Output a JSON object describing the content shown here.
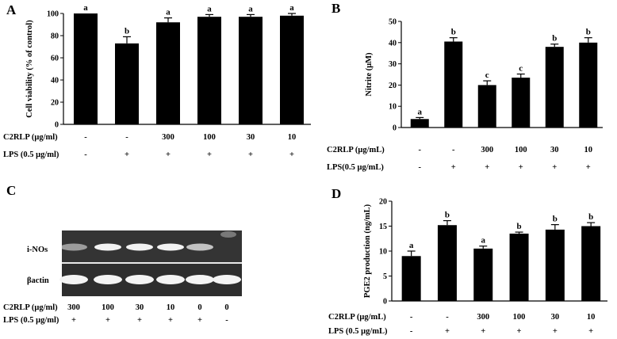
{
  "figure": {
    "panels": [
      {
        "id": "A",
        "label": "A"
      },
      {
        "id": "B",
        "label": "B"
      },
      {
        "id": "C",
        "label": "C"
      },
      {
        "id": "D",
        "label": "D"
      }
    ]
  },
  "chart_data": [
    {
      "panel": "A",
      "type": "bar",
      "ylabel": "Cell viability (% of control)",
      "ylim": [
        0,
        100
      ],
      "yticks": [
        0,
        20,
        40,
        60,
        80,
        100
      ],
      "values": [
        100,
        73,
        92,
        97,
        97,
        98
      ],
      "errors": [
        0,
        6,
        4,
        2,
        2,
        2
      ],
      "significance": [
        "a",
        "b",
        "a",
        "a",
        "a",
        "a"
      ],
      "condition_rows": [
        {
          "label": "C2RLP (μg/ml)",
          "values": [
            "-",
            "-",
            "300",
            "100",
            "30",
            "10"
          ]
        },
        {
          "label": "LPS (0.5 μg/ml)",
          "values": [
            "-",
            "+",
            "+",
            "+",
            "+",
            "+"
          ]
        }
      ]
    },
    {
      "panel": "B",
      "type": "bar",
      "ylabel": "Nitrite (μM)",
      "ylim": [
        0,
        50
      ],
      "yticks": [
        0,
        10,
        20,
        30,
        40,
        50
      ],
      "values": [
        4,
        40.5,
        20,
        23.5,
        38,
        40
      ],
      "errors": [
        0.7,
        1.8,
        2,
        1.7,
        1.3,
        2.3
      ],
      "significance": [
        "a",
        "b",
        "c",
        "c",
        "b",
        "b"
      ],
      "condition_rows": [
        {
          "label": "C2RLP (μg/mL)",
          "values": [
            "-",
            "-",
            "300",
            "100",
            "30",
            "10"
          ]
        },
        {
          "label": "LPS(0.5 μg/mL)",
          "values": [
            "-",
            "+",
            "+",
            "+",
            "+",
            "+"
          ]
        }
      ]
    },
    {
      "panel": "D",
      "type": "bar",
      "ylabel": "PGE2 production (ng/mL)",
      "ylim": [
        0,
        20
      ],
      "yticks": [
        0,
        5,
        10,
        15,
        20
      ],
      "values": [
        9,
        15.2,
        10.5,
        13.5,
        14.3,
        15
      ],
      "errors": [
        1,
        0.9,
        0.5,
        0.3,
        1,
        0.7
      ],
      "significance": [
        "a",
        "b",
        "a",
        "b",
        "b",
        "b"
      ],
      "condition_rows": [
        {
          "label": "C2RLP (μg/mL)",
          "values": [
            "-",
            "-",
            "300",
            "100",
            "30",
            "10"
          ]
        },
        {
          "label": "LPS (0.5 μg/mL)",
          "values": [
            "-",
            "+",
            "+",
            "+",
            "+",
            "+"
          ]
        }
      ]
    }
  ],
  "gel": {
    "bands": [
      "i-NOs",
      "βactin"
    ],
    "inos_intensity": [
      0.55,
      1.0,
      1.0,
      1.0,
      0.75,
      0
    ],
    "actin_intensity": [
      1.0,
      1.0,
      1.0,
      1.0,
      1.0,
      1.0
    ],
    "condition_rows": [
      {
        "label": "C2RLP (μg/ml)",
        "values": [
          "300",
          "100",
          "30",
          "10",
          "0",
          "0"
        ]
      },
      {
        "label": "LPS (0.5 μg/ml)",
        "values": [
          "+",
          "+",
          "+",
          "+",
          "+",
          "-"
        ]
      }
    ]
  }
}
